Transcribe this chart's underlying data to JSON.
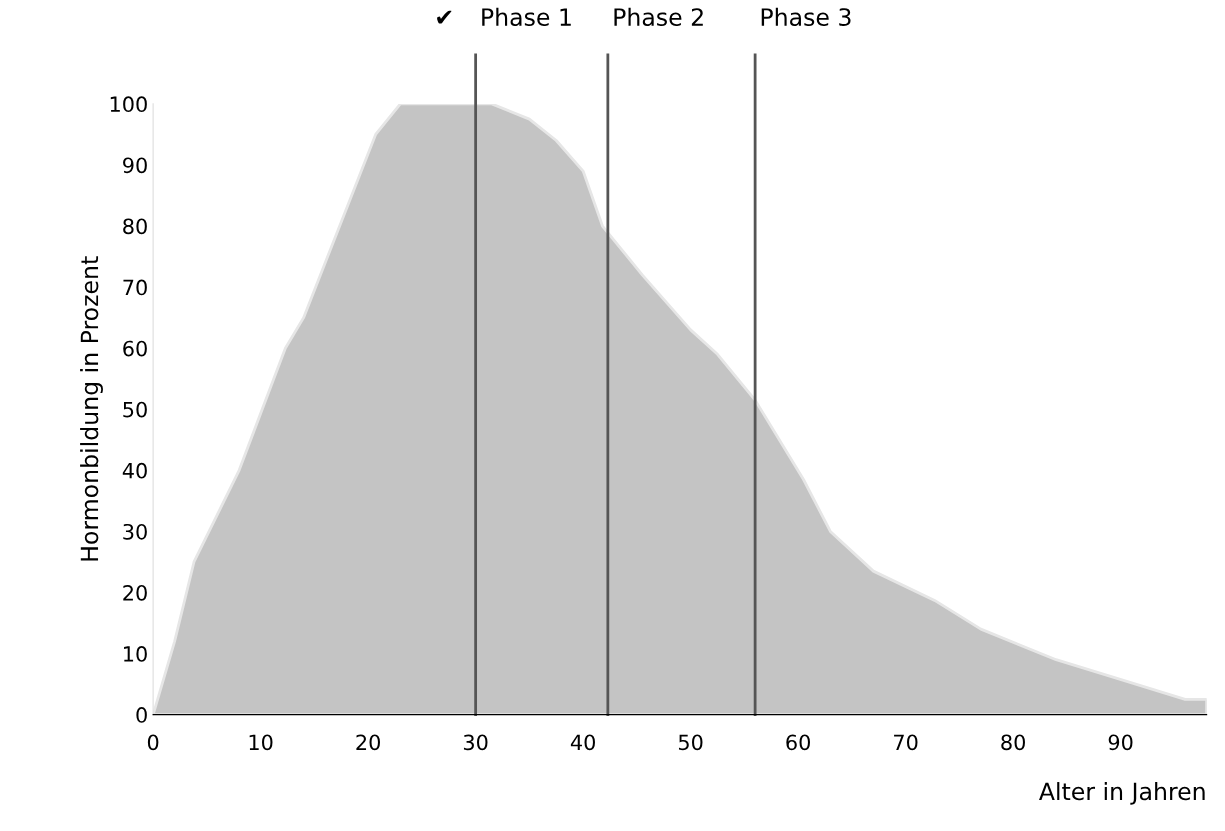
{
  "chart_data": {
    "type": "area",
    "xlabel": "Alter in Jahren",
    "ylabel": "Hormonbildung in Prozent",
    "x": [
      0,
      2,
      3.8,
      8,
      12.3,
      14,
      20.7,
      23,
      31.5,
      35,
      37.5,
      40,
      41.8,
      45.5,
      50,
      52.5,
      56,
      60.5,
      63,
      67,
      72.7,
      77,
      84,
      90.5,
      96,
      98
    ],
    "series": [
      {
        "color": "#c4c4c4",
        "values": [
          0,
          12,
          25,
          40,
          60,
          65,
          95,
          100,
          100,
          97.5,
          94,
          89,
          80,
          72,
          63,
          59,
          51.5,
          38.5,
          30,
          23.5,
          18.7,
          14,
          9,
          5.5,
          2.5,
          2.5
        ]
      }
    ],
    "xlim": [
      0,
      98
    ],
    "xticks": [
      0,
      10,
      20,
      30,
      40,
      50,
      60,
      70,
      80,
      90
    ],
    "ylim": [
      0,
      100
    ],
    "yticks": [
      0,
      10,
      20,
      30,
      40,
      50,
      60,
      70,
      80,
      90,
      100
    ],
    "grid": false,
    "legend": false,
    "ref_lines": [
      {
        "axis": "x",
        "value": 30,
        "label": "Phase 1",
        "color": "#555555"
      },
      {
        "axis": "x",
        "value": 42.3,
        "label": "Phase 2",
        "color": "#555555"
      },
      {
        "axis": "x",
        "value": 56,
        "label": "Phase 3",
        "color": "#555555"
      }
    ],
    "annotations": [
      "✔"
    ]
  }
}
